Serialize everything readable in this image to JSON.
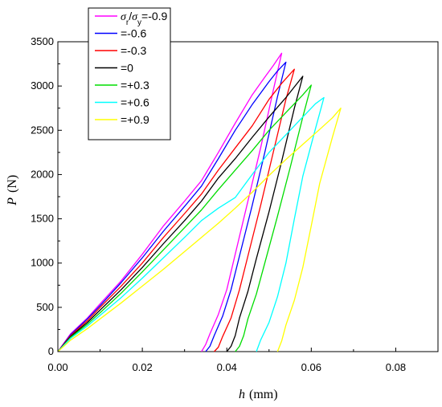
{
  "chart_data": {
    "type": "line",
    "xlabel": "h",
    "xlabel_unit": "(mm)",
    "ylabel": "P",
    "ylabel_unit": "(N)",
    "xlim": [
      0.0,
      0.09
    ],
    "ylim": [
      0,
      3500
    ],
    "xticks": [
      "0.00",
      "0.02",
      "0.04",
      "0.06",
      "0.08"
    ],
    "yticks": [
      "0",
      "500",
      "1000",
      "1500",
      "2000",
      "2500",
      "3000",
      "3500"
    ],
    "grid": false,
    "legend_position": "top-left",
    "legend_header": {
      "sym1": "σ",
      "sub1": "r",
      "slash": "/",
      "sym2": "σ",
      "sub2": "y"
    },
    "series": [
      {
        "name": "=-0.9",
        "color": "#ff00ff",
        "loading": [
          [
            0,
            0
          ],
          [
            0.003,
            200
          ],
          [
            0.007,
            380
          ],
          [
            0.01,
            540
          ],
          [
            0.015,
            800
          ],
          [
            0.02,
            1100
          ],
          [
            0.025,
            1420
          ],
          [
            0.03,
            1700
          ],
          [
            0.034,
            1930
          ],
          [
            0.038,
            2250
          ],
          [
            0.042,
            2580
          ],
          [
            0.046,
            2900
          ],
          [
            0.049,
            3100
          ],
          [
            0.051,
            3230
          ],
          [
            0.053,
            3370
          ]
        ],
        "unloading": [
          [
            0.053,
            3370
          ],
          [
            0.051,
            2950
          ],
          [
            0.048,
            2300
          ],
          [
            0.045,
            1700
          ],
          [
            0.042,
            1100
          ],
          [
            0.04,
            700
          ],
          [
            0.038,
            420
          ],
          [
            0.036,
            200
          ],
          [
            0.035,
            80
          ],
          [
            0.034,
            0
          ]
        ]
      },
      {
        "name": "=-0.6",
        "color": "#0000ff",
        "loading": [
          [
            0,
            0
          ],
          [
            0.003,
            190
          ],
          [
            0.007,
            370
          ],
          [
            0.01,
            520
          ],
          [
            0.015,
            780
          ],
          [
            0.02,
            1060
          ],
          [
            0.025,
            1360
          ],
          [
            0.03,
            1640
          ],
          [
            0.034,
            1870
          ],
          [
            0.038,
            2180
          ],
          [
            0.042,
            2500
          ],
          [
            0.046,
            2790
          ],
          [
            0.05,
            3050
          ],
          [
            0.052,
            3170
          ],
          [
            0.054,
            3270
          ]
        ],
        "unloading": [
          [
            0.054,
            3270
          ],
          [
            0.052,
            2880
          ],
          [
            0.049,
            2250
          ],
          [
            0.046,
            1650
          ],
          [
            0.043,
            1080
          ],
          [
            0.041,
            700
          ],
          [
            0.039,
            400
          ],
          [
            0.037,
            180
          ],
          [
            0.036,
            60
          ],
          [
            0.035,
            0
          ]
        ]
      },
      {
        "name": "=-0.3",
        "color": "#ff0000",
        "loading": [
          [
            0,
            0
          ],
          [
            0.003,
            180
          ],
          [
            0.007,
            350
          ],
          [
            0.01,
            500
          ],
          [
            0.015,
            740
          ],
          [
            0.02,
            1000
          ],
          [
            0.025,
            1290
          ],
          [
            0.03,
            1560
          ],
          [
            0.034,
            1780
          ],
          [
            0.038,
            2050
          ],
          [
            0.042,
            2300
          ],
          [
            0.046,
            2550
          ],
          [
            0.05,
            2850
          ],
          [
            0.053,
            3030
          ],
          [
            0.056,
            3190
          ]
        ],
        "unloading": [
          [
            0.056,
            3190
          ],
          [
            0.054,
            2850
          ],
          [
            0.051,
            2250
          ],
          [
            0.048,
            1650
          ],
          [
            0.045,
            1080
          ],
          [
            0.043,
            700
          ],
          [
            0.041,
            380
          ],
          [
            0.039,
            170
          ],
          [
            0.038,
            50
          ],
          [
            0.037,
            0
          ]
        ]
      },
      {
        "name": "=0",
        "color": "#000000",
        "loading": [
          [
            0,
            0
          ],
          [
            0.003,
            170
          ],
          [
            0.007,
            330
          ],
          [
            0.01,
            470
          ],
          [
            0.015,
            700
          ],
          [
            0.02,
            950
          ],
          [
            0.025,
            1220
          ],
          [
            0.03,
            1480
          ],
          [
            0.034,
            1700
          ],
          [
            0.038,
            1960
          ],
          [
            0.042,
            2180
          ],
          [
            0.046,
            2420
          ],
          [
            0.05,
            2650
          ],
          [
            0.054,
            2870
          ],
          [
            0.058,
            3110
          ]
        ],
        "unloading": [
          [
            0.058,
            3110
          ],
          [
            0.056,
            2750
          ],
          [
            0.053,
            2150
          ],
          [
            0.05,
            1580
          ],
          [
            0.047,
            1050
          ],
          [
            0.045,
            680
          ],
          [
            0.043,
            380
          ],
          [
            0.042,
            180
          ],
          [
            0.041,
            60
          ],
          [
            0.04,
            0
          ]
        ]
      },
      {
        "name": "=+0.3",
        "color": "#00dd00",
        "loading": [
          [
            0,
            0
          ],
          [
            0.003,
            160
          ],
          [
            0.007,
            310
          ],
          [
            0.01,
            440
          ],
          [
            0.015,
            660
          ],
          [
            0.02,
            900
          ],
          [
            0.025,
            1150
          ],
          [
            0.03,
            1400
          ],
          [
            0.034,
            1600
          ],
          [
            0.038,
            1830
          ],
          [
            0.042,
            2050
          ],
          [
            0.046,
            2270
          ],
          [
            0.05,
            2500
          ],
          [
            0.054,
            2700
          ],
          [
            0.058,
            2900
          ],
          [
            0.06,
            3010
          ]
        ],
        "unloading": [
          [
            0.06,
            3010
          ],
          [
            0.058,
            2650
          ],
          [
            0.055,
            2080
          ],
          [
            0.052,
            1530
          ],
          [
            0.049,
            1000
          ],
          [
            0.047,
            650
          ],
          [
            0.045,
            370
          ],
          [
            0.044,
            180
          ],
          [
            0.043,
            60
          ],
          [
            0.042,
            0
          ]
        ]
      },
      {
        "name": "=+0.6",
        "color": "#00ffff",
        "loading": [
          [
            0,
            0
          ],
          [
            0.003,
            150
          ],
          [
            0.007,
            290
          ],
          [
            0.01,
            410
          ],
          [
            0.015,
            610
          ],
          [
            0.02,
            830
          ],
          [
            0.025,
            1060
          ],
          [
            0.03,
            1290
          ],
          [
            0.034,
            1480
          ],
          [
            0.038,
            1620
          ],
          [
            0.042,
            1740
          ],
          [
            0.046,
            2000
          ],
          [
            0.05,
            2250
          ],
          [
            0.054,
            2450
          ],
          [
            0.058,
            2650
          ],
          [
            0.061,
            2800
          ],
          [
            0.063,
            2870
          ]
        ],
        "unloading": [
          [
            0.063,
            2870
          ],
          [
            0.061,
            2520
          ],
          [
            0.058,
            1980
          ],
          [
            0.056,
            1500
          ],
          [
            0.054,
            1000
          ],
          [
            0.052,
            620
          ],
          [
            0.05,
            330
          ],
          [
            0.048,
            130
          ],
          [
            0.047,
            0
          ]
        ]
      },
      {
        "name": "=+0.9",
        "color": "#ffff00",
        "loading": [
          [
            0,
            0
          ],
          [
            0.003,
            130
          ],
          [
            0.007,
            260
          ],
          [
            0.01,
            370
          ],
          [
            0.015,
            550
          ],
          [
            0.02,
            740
          ],
          [
            0.025,
            930
          ],
          [
            0.03,
            1130
          ],
          [
            0.034,
            1290
          ],
          [
            0.038,
            1450
          ],
          [
            0.042,
            1620
          ],
          [
            0.046,
            1800
          ],
          [
            0.05,
            1990
          ],
          [
            0.054,
            2170
          ],
          [
            0.058,
            2340
          ],
          [
            0.062,
            2510
          ],
          [
            0.065,
            2640
          ],
          [
            0.067,
            2750
          ]
        ],
        "unloading": [
          [
            0.067,
            2750
          ],
          [
            0.065,
            2420
          ],
          [
            0.062,
            1900
          ],
          [
            0.06,
            1420
          ],
          [
            0.058,
            950
          ],
          [
            0.056,
            580
          ],
          [
            0.054,
            300
          ],
          [
            0.053,
            120
          ],
          [
            0.052,
            0
          ]
        ]
      }
    ]
  }
}
